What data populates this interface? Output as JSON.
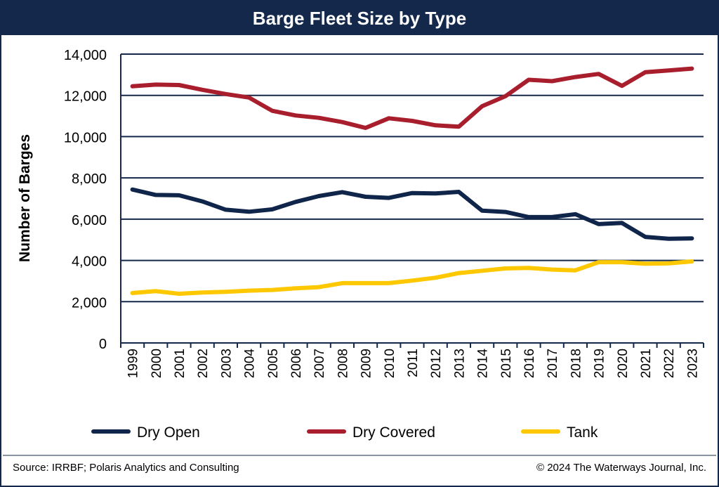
{
  "chart_data": {
    "type": "line",
    "title": "Barge Fleet Size by Type",
    "xlabel": "",
    "ylabel": "Number of Barges",
    "ylim": [
      0,
      14000
    ],
    "yticks": [
      "0",
      "2,000",
      "4,000",
      "6,000",
      "8,000",
      "10,000",
      "12,000",
      "14,000"
    ],
    "ytick_values": [
      0,
      2000,
      4000,
      6000,
      8000,
      10000,
      12000,
      14000
    ],
    "grid": true,
    "legend_position": "bottom",
    "categories": [
      "1999",
      "2000",
      "2001",
      "2002",
      "2003",
      "2004",
      "2005",
      "2006",
      "2007",
      "2008",
      "2009",
      "2010",
      "2011",
      "2012",
      "2013",
      "2014",
      "2015",
      "2016",
      "2017",
      "2018",
      "2019",
      "2020",
      "2021",
      "2022",
      "2023"
    ],
    "series": [
      {
        "name": "Dry Open",
        "color": "#0f2549",
        "values": [
          7435,
          7175,
          7155,
          6860,
          6460,
          6360,
          6475,
          6835,
          7120,
          7310,
          7085,
          7030,
          7265,
          7245,
          7325,
          6410,
          6350,
          6100,
          6100,
          6240,
          5760,
          5815,
          5140,
          5050,
          5070
        ]
      },
      {
        "name": "Dry Covered",
        "color": "#a81e2d",
        "values": [
          12440,
          12520,
          12500,
          12270,
          12065,
          11895,
          11250,
          11025,
          10910,
          10705,
          10425,
          10890,
          10765,
          10550,
          10480,
          11475,
          11960,
          12755,
          12690,
          12890,
          13040,
          12460,
          13120,
          13210,
          13300
        ]
      },
      {
        "name": "Tank",
        "color": "#fdc800",
        "values": [
          2420,
          2510,
          2385,
          2445,
          2480,
          2535,
          2570,
          2650,
          2705,
          2900,
          2900,
          2900,
          3020,
          3160,
          3385,
          3500,
          3610,
          3635,
          3555,
          3520,
          3915,
          3915,
          3840,
          3860,
          3950
        ]
      }
    ]
  },
  "footer": {
    "source": "Source: IRRBF; Polaris Analytics and Consulting",
    "copyright": "© 2024 The Waterways Journal, Inc."
  },
  "colors": {
    "frame": "#13284b",
    "grid": "#13284b"
  }
}
